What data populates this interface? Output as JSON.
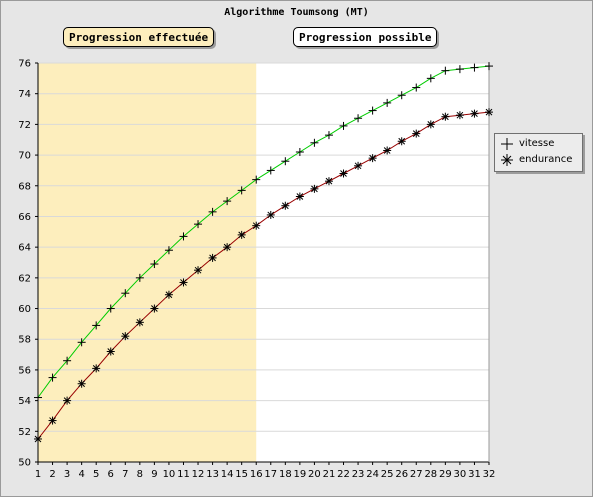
{
  "colors": {
    "frame_background": "#e6e6e6",
    "shaded_zone": "#fdeebd",
    "vitesse_line": "#00cc00",
    "endurance_line": "#990000",
    "markers": "#000000"
  },
  "labels": {
    "done": "Progression effectuée",
    "possible": "Progression possible"
  },
  "chart_data": {
    "type": "line",
    "title": "Algorithme Toumsong (MT)",
    "xlabel": "",
    "ylabel": "",
    "x": [
      1,
      2,
      3,
      4,
      5,
      6,
      7,
      8,
      9,
      10,
      11,
      12,
      13,
      14,
      15,
      16,
      17,
      18,
      19,
      20,
      21,
      22,
      23,
      24,
      25,
      26,
      27,
      28,
      29,
      30,
      31,
      32
    ],
    "xlim": [
      1,
      32
    ],
    "ylim": [
      50,
      76
    ],
    "y_ticks": [
      50,
      52,
      54,
      56,
      58,
      60,
      62,
      64,
      66,
      68,
      70,
      72,
      74,
      76
    ],
    "grid": "horizontal",
    "shaded_x_range": [
      1,
      16
    ],
    "legend_position": "right",
    "series": [
      {
        "name": "vitesse",
        "marker": "plus",
        "color": "#00cc00",
        "values": [
          54.2,
          55.5,
          56.6,
          57.8,
          58.9,
          60.0,
          61.0,
          62.0,
          62.9,
          63.8,
          64.7,
          65.5,
          66.3,
          67.0,
          67.7,
          68.4,
          69.0,
          69.6,
          70.2,
          70.8,
          71.3,
          71.9,
          72.4,
          72.9,
          73.4,
          73.9,
          74.4,
          75.0,
          75.5,
          75.6,
          75.7,
          75.8
        ]
      },
      {
        "name": "endurance",
        "marker": "asterisk",
        "color": "#990000",
        "values": [
          51.5,
          52.7,
          54.0,
          55.1,
          56.1,
          57.2,
          58.2,
          59.1,
          60.0,
          60.9,
          61.7,
          62.5,
          63.3,
          64.0,
          64.8,
          65.4,
          66.1,
          66.7,
          67.3,
          67.8,
          68.3,
          68.8,
          69.3,
          69.8,
          70.3,
          70.9,
          71.4,
          72.0,
          72.5,
          72.6,
          72.7,
          72.8
        ]
      }
    ]
  }
}
